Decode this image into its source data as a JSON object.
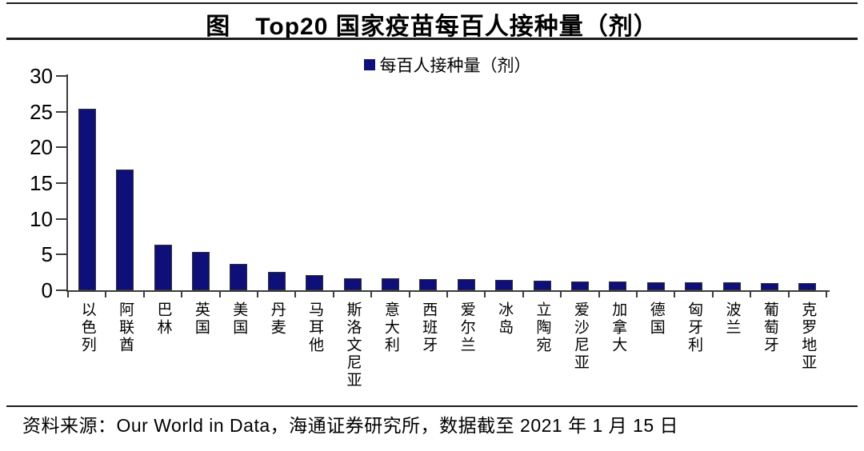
{
  "header": {
    "title": "图　Top20 国家疫苗每百人接种量（剂）"
  },
  "legend": {
    "label": "每百人接种量（剂）",
    "marker_color": "#0f0f7a"
  },
  "chart_data": {
    "type": "bar",
    "title": "图 Top20 国家疫苗每百人接种量（剂）",
    "legend_entries": [
      "每百人接种量（剂）"
    ],
    "legend_position": "top-center",
    "categories": [
      "以色列",
      "阿联酋",
      "巴林",
      "英国",
      "美国",
      "丹麦",
      "马耳他",
      "斯洛文尼亚",
      "意大利",
      "西班牙",
      "爱尔兰",
      "冰岛",
      "立陶宛",
      "爱沙尼亚",
      "加拿大",
      "德国",
      "匈牙利",
      "波兰",
      "葡萄牙",
      "克罗地亚"
    ],
    "values": [
      25.4,
      16.9,
      6.4,
      5.4,
      3.7,
      2.6,
      2.1,
      1.7,
      1.65,
      1.6,
      1.55,
      1.4,
      1.3,
      1.25,
      1.2,
      1.15,
      1.1,
      1.1,
      1.05,
      1.0
    ],
    "xlabel": "",
    "ylabel": "",
    "ylim": [
      0,
      30
    ],
    "yticks": [
      0,
      5,
      10,
      15,
      20,
      25,
      30
    ],
    "grid": false,
    "bar_color": "#0f0f7a",
    "axis_color": "#3c3c3c"
  },
  "footer": {
    "source": "资料来源：Our World in Data，海通证券研究所，数据截至 2021 年 1 月 15 日"
  }
}
